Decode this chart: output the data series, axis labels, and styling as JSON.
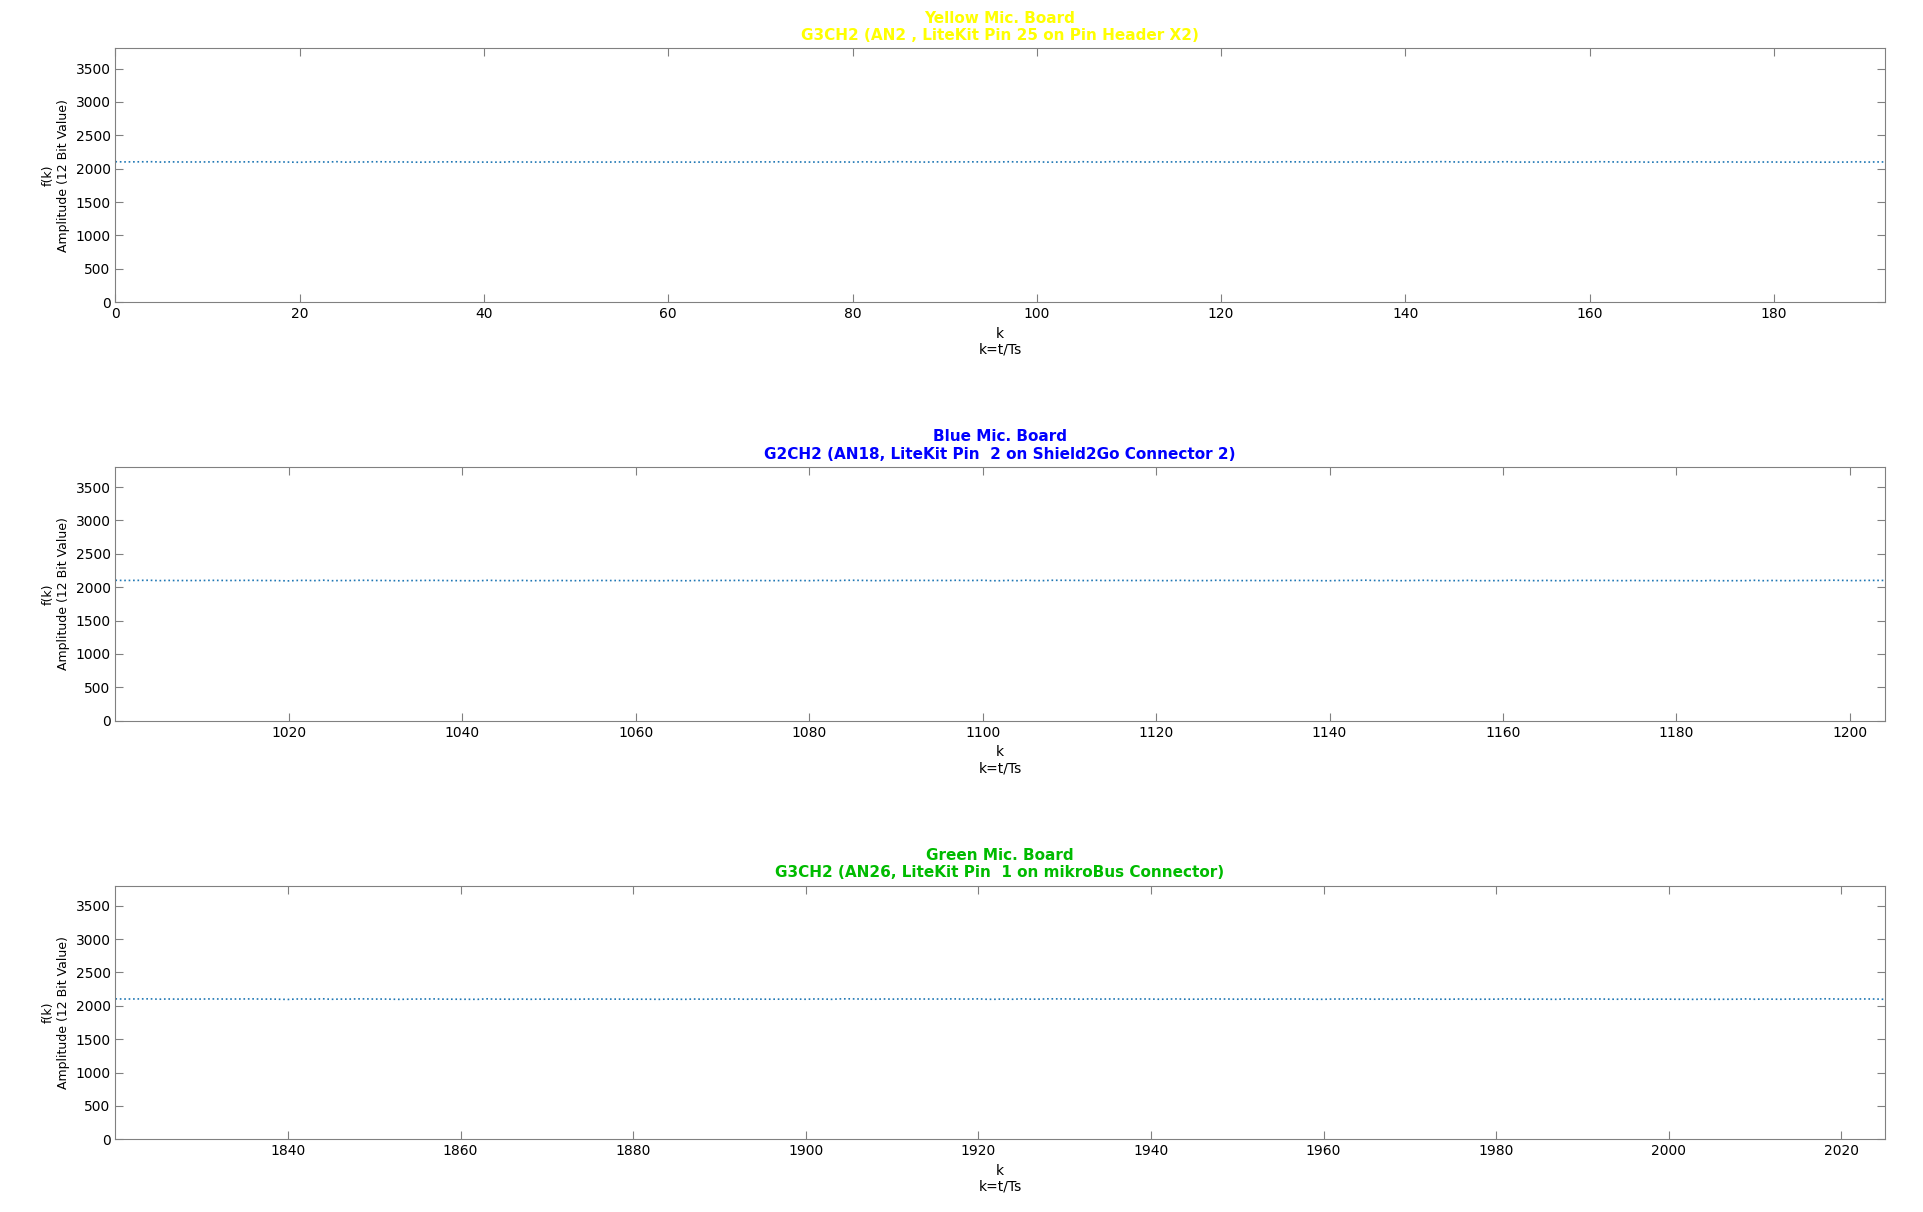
{
  "fig_width": 19.23,
  "fig_height": 12.12,
  "background_color": "#ffffff",
  "axes_facecolor": "#ffffff",
  "plot1": {
    "title1": "Yellow Mic. Board",
    "title2": "G3CH2 (AN2 , LiteKit Pin 25 on Pin Header X2)",
    "title_color": "#ffff00",
    "x_start": 0,
    "x_end": 192,
    "x_ticks": [
      0,
      20,
      40,
      60,
      80,
      100,
      120,
      140,
      160,
      180
    ],
    "y_value": 2100,
    "xlabel": "k",
    "xlabel2": "k=t/Ts",
    "ylabel": "f(k)\nAmplitude (12 Bit Value)"
  },
  "plot2": {
    "title1": "Blue Mic. Board",
    "title2": "G2CH2 (AN18, LiteKit Pin  2 on Shield2Go Connector 2)",
    "title_color": "#0000ff",
    "x_start": 1000,
    "x_end": 1204,
    "x_ticks": [
      1020,
      1040,
      1060,
      1080,
      1100,
      1120,
      1140,
      1160,
      1180,
      1200
    ],
    "y_value": 2100,
    "xlabel": "k",
    "xlabel2": "k=t/Ts",
    "ylabel": "f(k)\nAmplitude (12 Bit Value)"
  },
  "plot3": {
    "title1": "Green Mic. Board",
    "title2": "G3CH2 (AN26, LiteKit Pin  1 on mikroBus Connector)",
    "title_color": "#00bb00",
    "x_start": 1820,
    "x_end": 2025,
    "x_ticks": [
      1840,
      1860,
      1880,
      1900,
      1920,
      1940,
      1960,
      1980,
      2000,
      2020
    ],
    "y_value": 2100,
    "xlabel": "k",
    "xlabel2": "k=t/Ts",
    "ylabel": "f(k)\nAmplitude (12 Bit Value)"
  },
  "ylim": [
    0,
    3800
  ],
  "y_ticks": [
    0,
    500,
    1000,
    1500,
    2000,
    2500,
    3000,
    3500
  ],
  "line_color": "#1f77b4",
  "axes_spine_color": "#808080",
  "tick_color": "#000000",
  "label_color": "#000000",
  "title_fontsize": 11,
  "label_fontsize": 10,
  "ylabel_fontsize": 9
}
